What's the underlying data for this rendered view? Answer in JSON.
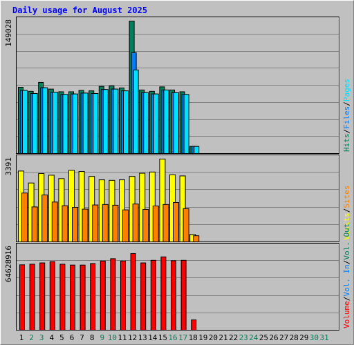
{
  "title": "Daily usage for August 2025",
  "colors": {
    "background": "#c0c0c0",
    "title": "#0000ff",
    "hits": "#00805c",
    "files": "#0080ff",
    "pages": "#00e0ff",
    "visits": "#ffff00",
    "sites": "#ff8000",
    "kbytes": "#ff0000",
    "separator": "#000000",
    "weekend_label": "#00805c",
    "weekday_label": "#000000"
  },
  "panels": {
    "top": {
      "max_label": "149028",
      "legend": [
        {
          "text": "Hits",
          "color_key": "hits"
        },
        {
          "text": "/",
          "color_key": "separator"
        },
        {
          "text": "Files",
          "color_key": "files"
        },
        {
          "text": "/",
          "color_key": "separator"
        },
        {
          "text": "Pages",
          "color_key": "pages"
        }
      ]
    },
    "middle": {
      "max_label": "3391",
      "legend": [
        {
          "text": "Visits",
          "color_key": "visits"
        },
        {
          "text": "/",
          "color_key": "separator"
        },
        {
          "text": "Sites",
          "color_key": "sites"
        }
      ]
    },
    "bottom": {
      "max_label": "64628916",
      "legend": [
        {
          "text": "Volume",
          "color_key": "kbytes"
        },
        {
          "text": "/",
          "color_key": "separator"
        },
        {
          "text": "Vol. In",
          "color_key": "files"
        },
        {
          "text": "/",
          "color_key": "separator"
        },
        {
          "text": "Vol. Out",
          "color_key": "hits"
        }
      ]
    }
  },
  "days": [
    {
      "label": "1",
      "weekend": false
    },
    {
      "label": "2",
      "weekend": true
    },
    {
      "label": "3",
      "weekend": true
    },
    {
      "label": "4",
      "weekend": false
    },
    {
      "label": "5",
      "weekend": false
    },
    {
      "label": "6",
      "weekend": false
    },
    {
      "label": "7",
      "weekend": false
    },
    {
      "label": "8",
      "weekend": false
    },
    {
      "label": "9",
      "weekend": true
    },
    {
      "label": "10",
      "weekend": true
    },
    {
      "label": "11",
      "weekend": false
    },
    {
      "label": "12",
      "weekend": false
    },
    {
      "label": "13",
      "weekend": false
    },
    {
      "label": "14",
      "weekend": false
    },
    {
      "label": "15",
      "weekend": false
    },
    {
      "label": "16",
      "weekend": true
    },
    {
      "label": "17",
      "weekend": true
    },
    {
      "label": "18",
      "weekend": false
    },
    {
      "label": "19",
      "weekend": false
    },
    {
      "label": "20",
      "weekend": false
    },
    {
      "label": "21",
      "weekend": false
    },
    {
      "label": "22",
      "weekend": false
    },
    {
      "label": "23",
      "weekend": true
    },
    {
      "label": "24",
      "weekend": true
    },
    {
      "label": "25",
      "weekend": false
    },
    {
      "label": "26",
      "weekend": false
    },
    {
      "label": "27",
      "weekend": false
    },
    {
      "label": "28",
      "weekend": false
    },
    {
      "label": "29",
      "weekend": false
    },
    {
      "label": "30",
      "weekend": true
    },
    {
      "label": "31",
      "weekend": true
    }
  ],
  "chart_data": {
    "type": "bar",
    "categories": [
      "1",
      "2",
      "3",
      "4",
      "5",
      "6",
      "7",
      "8",
      "9",
      "10",
      "11",
      "12",
      "13",
      "14",
      "15",
      "16",
      "17",
      "18",
      "19",
      "20",
      "21",
      "22",
      "23",
      "24",
      "25",
      "26",
      "27",
      "28",
      "29",
      "30",
      "31"
    ],
    "panels": [
      {
        "ylim": [
          0,
          149028
        ],
        "series": [
          {
            "name": "Hits",
            "values": [
              74500,
              70000,
              80000,
              72500,
              69500,
              69500,
              71000,
              70500,
              75500,
              76000,
              73800,
              149028,
              71500,
              70000,
              75000,
              71500,
              69500,
              8000,
              0,
              0,
              0,
              0,
              0,
              0,
              0,
              0,
              0,
              0,
              0,
              0,
              0
            ]
          },
          {
            "name": "Files",
            "values": [
              71000,
              67500,
              74000,
              69000,
              66500,
              67000,
              68000,
              67500,
              72000,
              72500,
              70500,
              113500,
              68500,
              67000,
              71500,
              68500,
              66500,
              8000,
              0,
              0,
              0,
              0,
              0,
              0,
              0,
              0,
              0,
              0,
              0,
              0,
              0
            ]
          },
          {
            "name": "Pages",
            "values": [
              71000,
              67500,
              74000,
              69000,
              66500,
              67000,
              68000,
              67500,
              72000,
              72500,
              70500,
              94000,
              68500,
              67000,
              71500,
              68500,
              66500,
              8000,
              0,
              0,
              0,
              0,
              0,
              0,
              0,
              0,
              0,
              0,
              0,
              0,
              0
            ]
          }
        ]
      },
      {
        "ylim": [
          0,
          3391
        ],
        "series": [
          {
            "name": "Visits",
            "values": [
              2900,
              2410,
              2800,
              2730,
              2590,
              2930,
              2880,
              2680,
              2540,
              2520,
              2540,
              2680,
              2810,
              2860,
              3390,
              2750,
              2700,
              300,
              0,
              0,
              0,
              0,
              0,
              0,
              0,
              0,
              0,
              0,
              0,
              0,
              0
            ]
          },
          {
            "name": "Sites",
            "values": [
              2000,
              1430,
              1920,
              1630,
              1480,
              1410,
              1340,
              1510,
              1530,
              1500,
              1310,
              1550,
              1330,
              1470,
              1530,
              1610,
              1360,
              250,
              0,
              0,
              0,
              0,
              0,
              0,
              0,
              0,
              0,
              0,
              0,
              0,
              0
            ]
          }
        ]
      },
      {
        "ylim": [
          0,
          64628916
        ],
        "series": [
          {
            "name": "Volume",
            "values": [
              51000000,
              51500000,
              52500000,
              53500000,
              51500000,
              50800000,
              50800000,
              52000000,
              54000000,
              55800000,
              54000000,
              59800000,
              52500000,
              54500000,
              57200000,
              54200000,
              54500000,
              8000000,
              0,
              0,
              0,
              0,
              0,
              0,
              0,
              0,
              0,
              0,
              0,
              0,
              0
            ]
          }
        ]
      }
    ]
  }
}
